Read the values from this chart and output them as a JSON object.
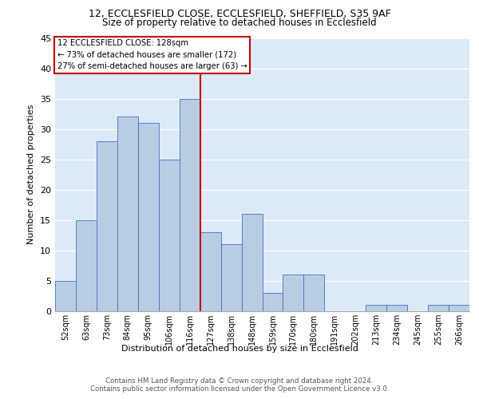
{
  "title1": "12, ECCLESFIELD CLOSE, ECCLESFIELD, SHEFFIELD, S35 9AF",
  "title2": "Size of property relative to detached houses in Ecclesfield",
  "xlabel": "Distribution of detached houses by size in Ecclesfield",
  "ylabel": "Number of detached properties",
  "categories": [
    "52sqm",
    "63sqm",
    "73sqm",
    "84sqm",
    "95sqm",
    "106sqm",
    "116sqm",
    "127sqm",
    "138sqm",
    "148sqm",
    "159sqm",
    "170sqm",
    "180sqm",
    "191sqm",
    "202sqm",
    "213sqm",
    "234sqm",
    "245sqm",
    "255sqm",
    "266sqm"
  ],
  "values": [
    5,
    15,
    28,
    32,
    31,
    25,
    35,
    13,
    11,
    16,
    3,
    6,
    6,
    0,
    0,
    1,
    1,
    0,
    1,
    1
  ],
  "bar_color": "#b8cce4",
  "bar_edge_color": "#4472c4",
  "marker_index": 7,
  "marker_color": "#c00000",
  "annotation_title": "12 ECCLESFIELD CLOSE: 128sqm",
  "annotation_line1": "← 73% of detached houses are smaller (172)",
  "annotation_line2": "27% of semi-detached houses are larger (63) →",
  "annotation_box_color": "#ffffff",
  "annotation_box_edge": "#c00000",
  "footer1": "Contains HM Land Registry data © Crown copyright and database right 2024.",
  "footer2": "Contains public sector information licensed under the Open Government Licence v3.0.",
  "ylim": [
    0,
    45
  ],
  "yticks": [
    0,
    5,
    10,
    15,
    20,
    25,
    30,
    35,
    40,
    45
  ],
  "bg_color": "#dce9f7",
  "fig_bg_color": "#ffffff",
  "grid_color": "#ffffff"
}
